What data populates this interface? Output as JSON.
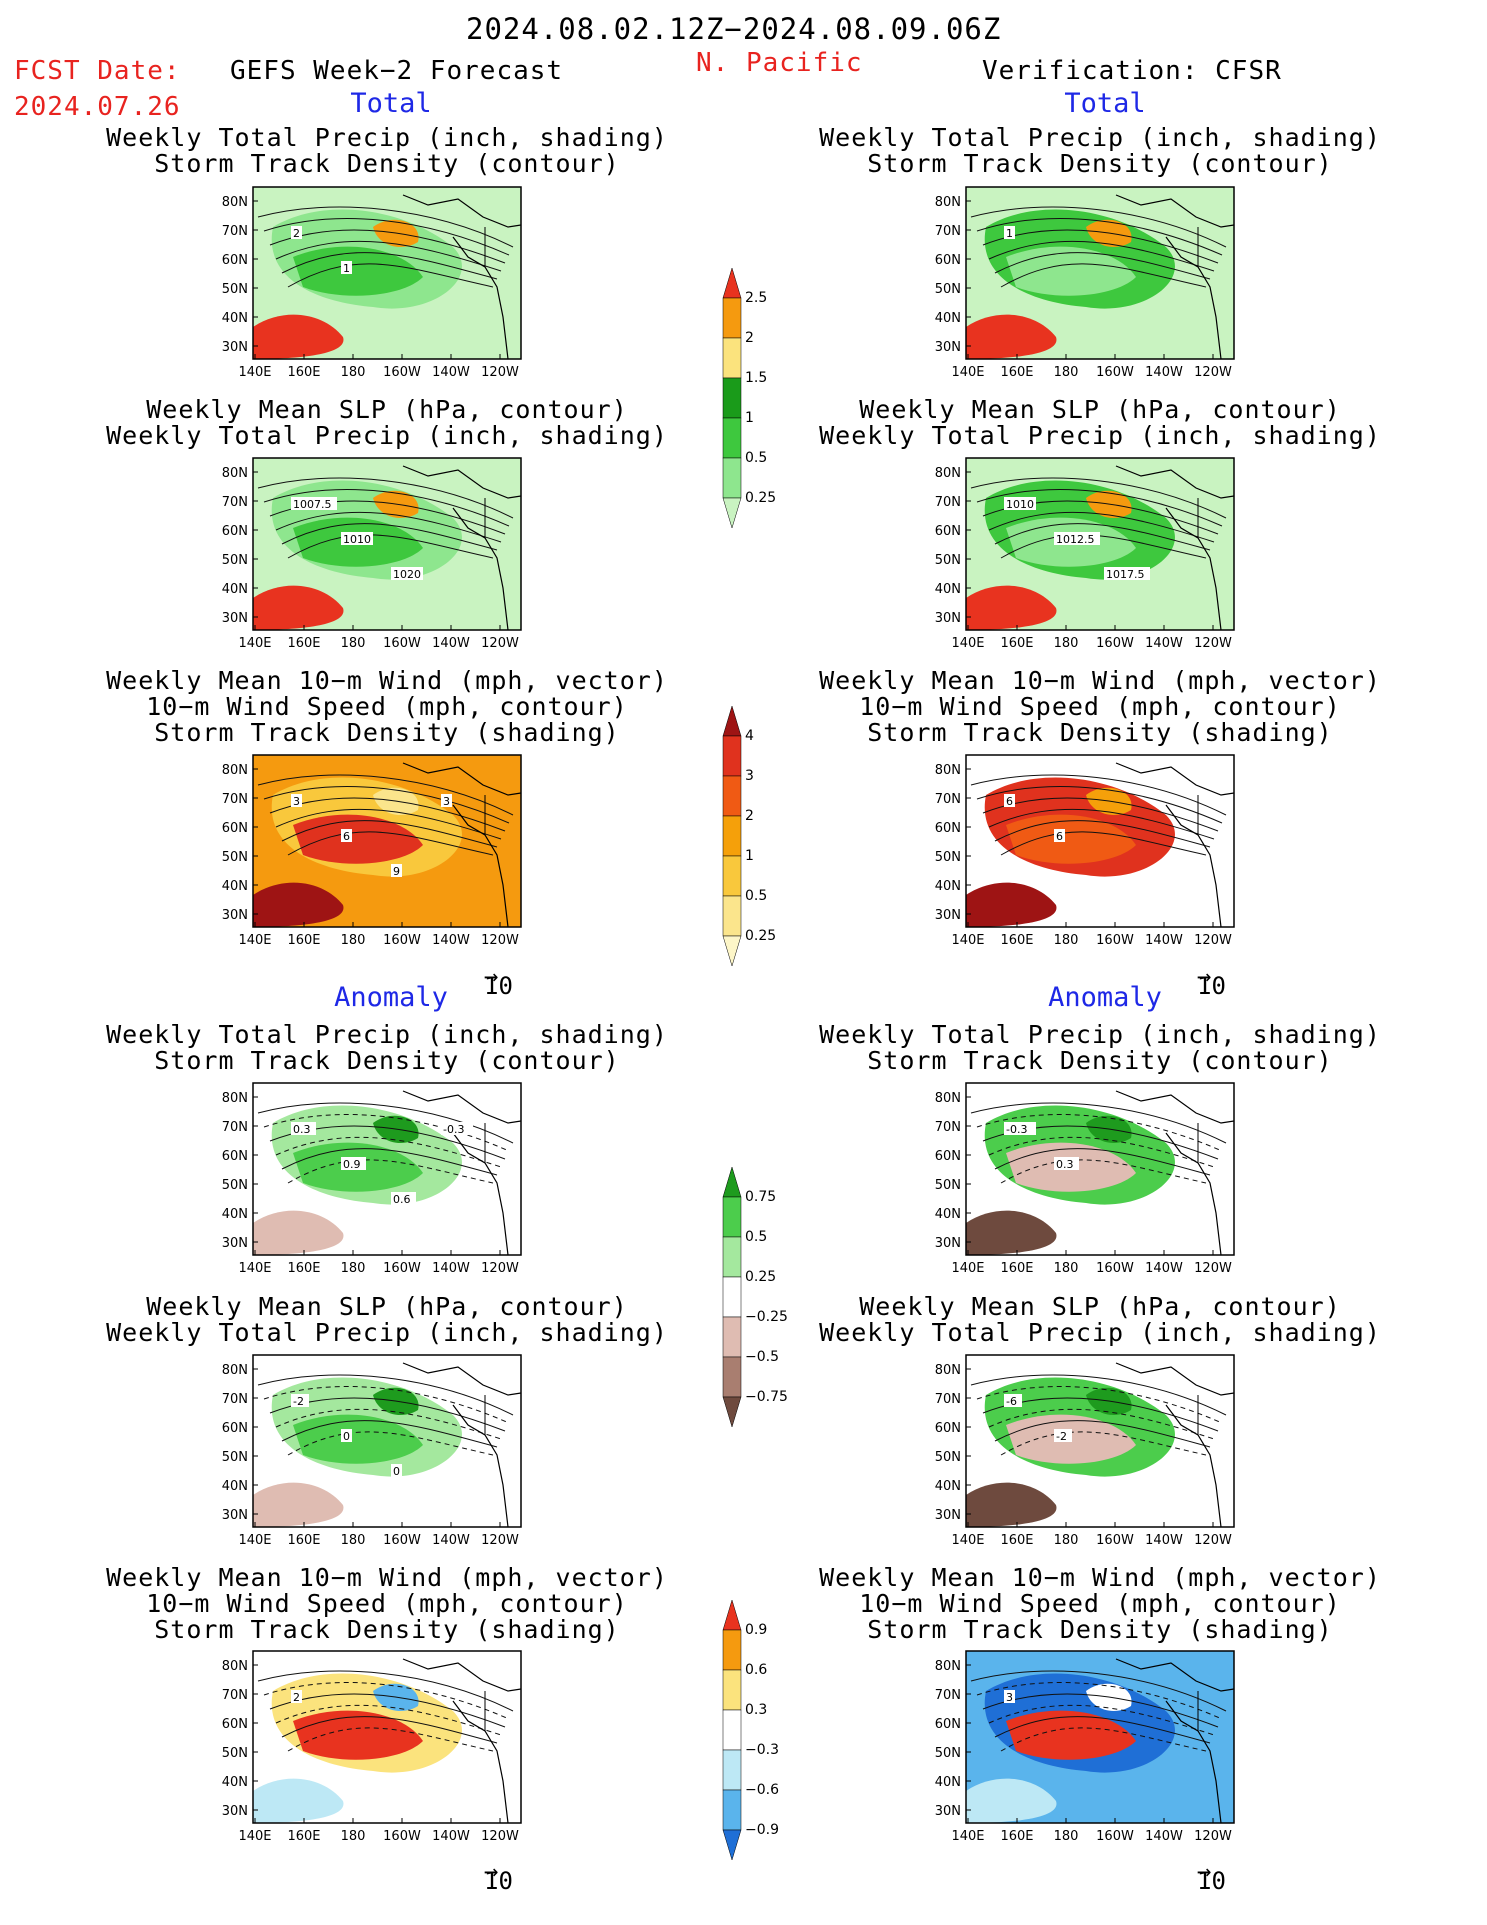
{
  "header": {
    "date_range": "2024.08.02.12Z−2024.08.09.06Z",
    "fcst_label": "FCST Date:",
    "fcst_date": "2024.07.26",
    "region": "N. Pacific",
    "left_title": "GEFS Week−2 Forecast",
    "right_title": "Verification: CFSR"
  },
  "sections": {
    "total": "Total",
    "anomaly": "Anomaly"
  },
  "panel_titles": {
    "precip_track": "Weekly Total Precip (inch, shading)\nStorm Track Density (contour)",
    "slp_precip": "Weekly Mean SLP (hPa, contour)\nWeekly Total Precip (inch, shading)",
    "wind_track": "Weekly Mean 10−m Wind (mph, vector)\n10−m Wind Speed (mph, contour)\nStorm Track Density (shading)"
  },
  "axes": {
    "lat_labels": [
      "80N",
      "70N",
      "60N",
      "50N",
      "40N",
      "30N"
    ],
    "lon_labels": [
      "140E",
      "160E",
      "180",
      "160W",
      "140W",
      "120W"
    ]
  },
  "vector_ref": "10",
  "colorbars": [
    {
      "id": "precip-total",
      "labels": [
        "2.5",
        "2",
        "1.5",
        "1",
        "0.5",
        "0.25"
      ],
      "colors": [
        "#e8331f",
        "#f59a0f",
        "#fbe37d",
        "#1a9b1a",
        "#3ec83e",
        "#8ee68e",
        "#c9f3c1"
      ]
    },
    {
      "id": "track-total",
      "labels": [
        "4",
        "3",
        "2",
        "1",
        "0.5",
        "0.25"
      ],
      "colors": [
        "#9e1414",
        "#e0321e",
        "#f05a14",
        "#f5a00a",
        "#f9c83c",
        "#fbe58c",
        "#fdf6c8"
      ]
    },
    {
      "id": "precip-anom",
      "labels": [
        "0.75",
        "0.5",
        "0.25",
        "−0.25",
        "−0.5",
        "−0.75"
      ],
      "colors": [
        "#1e9b1e",
        "#4ccd4c",
        "#a4e89e",
        "#ffffff",
        "#dfbcb2",
        "#a97e70",
        "#6e4a3e"
      ]
    },
    {
      "id": "track-anom",
      "labels": [
        "0.9",
        "0.6",
        "0.3",
        "−0.3",
        "−0.6",
        "−0.9"
      ],
      "colors": [
        "#e8331f",
        "#f59a0f",
        "#fbe37d",
        "#ffffff",
        "#bde8f5",
        "#5ab4ec",
        "#1f6fd6"
      ]
    }
  ],
  "panels": [
    {
      "id": "t-gefs-1",
      "title": "precip_track",
      "style": "precip",
      "contours": [
        "2",
        "1"
      ]
    },
    {
      "id": "t-cfsr-1",
      "title": "precip_track",
      "style": "precip-v",
      "contours": [
        "1"
      ]
    },
    {
      "id": "t-gefs-2",
      "title": "slp_precip",
      "style": "precip",
      "contours": [
        "1007.5",
        "1010",
        "1020"
      ]
    },
    {
      "id": "t-cfsr-2",
      "title": "slp_precip",
      "style": "precip-v",
      "contours": [
        "1010",
        "1012.5",
        "1017.5"
      ]
    },
    {
      "id": "t-gefs-3",
      "title": "wind_track",
      "style": "track",
      "contours": [
        "3",
        "6",
        "9",
        "3"
      ]
    },
    {
      "id": "t-cfsr-3",
      "title": "wind_track",
      "style": "track-v",
      "contours": [
        "6",
        "6"
      ]
    },
    {
      "id": "a-gefs-1",
      "title": "precip_track",
      "style": "anom-p",
      "contours": [
        "0.3",
        "0.9",
        "0.6",
        "-0.3"
      ]
    },
    {
      "id": "a-cfsr-1",
      "title": "precip_track",
      "style": "anom-p-v",
      "contours": [
        "-0.3",
        "0.3"
      ]
    },
    {
      "id": "a-gefs-2",
      "title": "slp_precip",
      "style": "anom-p",
      "contours": [
        "-2",
        "0",
        "0"
      ]
    },
    {
      "id": "a-cfsr-2",
      "title": "slp_precip",
      "style": "anom-p-v",
      "contours": [
        "-6",
        "-2"
      ]
    },
    {
      "id": "a-gefs-3",
      "title": "wind_track",
      "style": "anom-t",
      "contours": [
        "2"
      ]
    },
    {
      "id": "a-cfsr-3",
      "title": "wind_track",
      "style": "anom-t-v",
      "contours": [
        "3"
      ]
    }
  ]
}
